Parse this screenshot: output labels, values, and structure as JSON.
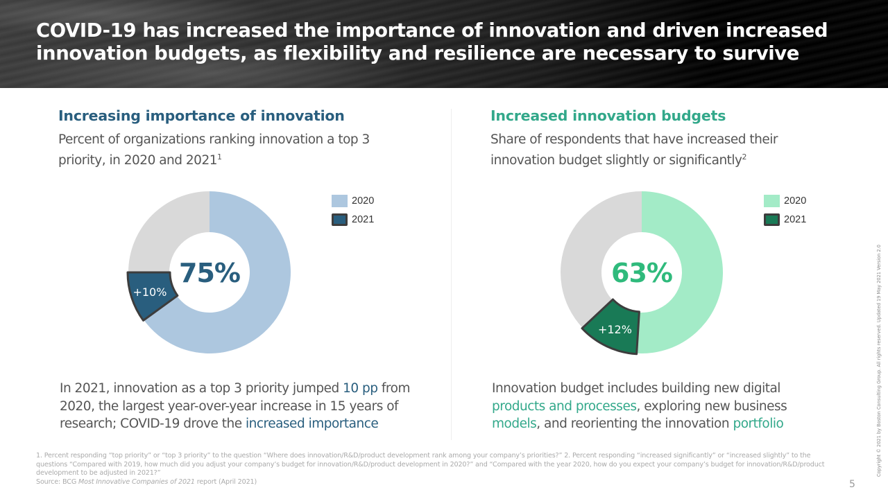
{
  "header": {
    "title": "COVID-19 has increased the importance of innovation and driven increased innovation budgets, as flexibility and resilience are necessary to survive"
  },
  "left_panel": {
    "title": "Increasing importance of innovation",
    "subtitle": "Percent of organizations ranking innovation a top 3 priority, in 2020 and 2021",
    "subtitle_sup": "1",
    "body_parts": [
      {
        "text": "In 2021, innovation as a top 3 priority jumped ",
        "highlight": false
      },
      {
        "text": "10 pp",
        "highlight": true
      },
      {
        "text": " from 2020, the largest year-over-year increase in 15 years of research; COVID-19 drove the ",
        "highlight": false
      },
      {
        "text": "increased importance",
        "highlight": true
      }
    ]
  },
  "right_panel": {
    "title": "Increased innovation budgets",
    "subtitle": "Share of respondents that have increased their innovation budget slightly or significantly",
    "subtitle_sup": "2",
    "body_parts": [
      {
        "text": "Innovation budget includes building new digital ",
        "highlight": false
      },
      {
        "text": "products and processes",
        "highlight": true
      },
      {
        "text": ", exploring new business ",
        "highlight": false
      },
      {
        "text": "models",
        "highlight": true
      },
      {
        "text": ", and reorienting the innovation ",
        "highlight": false
      },
      {
        "text": "portfolio",
        "highlight": true
      }
    ]
  },
  "chart_data": [
    {
      "type": "pie",
      "variant": "donut",
      "title": "Increasing importance of innovation",
      "categories": [
        "2020",
        "2021 increase",
        "Remainder"
      ],
      "values": [
        65,
        10,
        25
      ],
      "series": [
        {
          "name": "2020",
          "value": 65,
          "color": "#adc7df"
        },
        {
          "name": "2021",
          "value": 75,
          "increase_label": "+10%",
          "color": "#295e7e"
        }
      ],
      "center_label": "75%",
      "remainder_color": "#d9d9d9",
      "legend": [
        "2020",
        "2021"
      ],
      "legend_position": "top-right",
      "accent_color": "#295e7e"
    },
    {
      "type": "pie",
      "variant": "donut",
      "title": "Increased innovation budgets",
      "categories": [
        "2020",
        "2021 increase",
        "Remainder"
      ],
      "values": [
        51,
        12,
        37
      ],
      "series": [
        {
          "name": "2020",
          "value": 51,
          "color": "#a3ebc7"
        },
        {
          "name": "2021",
          "value": 63,
          "increase_label": "+12%",
          "color": "#197a56"
        }
      ],
      "center_label": "63%",
      "remainder_color": "#d9d9d9",
      "legend": [
        "2020",
        "2021"
      ],
      "legend_position": "top-right",
      "accent_color": "#2fba7c"
    }
  ],
  "footnotes": {
    "text": "1. Percent responding “top priority” or “top 3 priority” to the question “Where does innovation/R&D/product development rank among your company’s priorities?” 2. Percent responding “increased significantly” or “increased slightly” to the questions “Compared with 2019, how much did you adjust your company’s budget for innovation/R&D/product development in 2020?” and “Compared with the year 2020, how do you expect your company’s budget for innovation/R&D/product development to be adjusted in 2021?”",
    "source_prefix": "Source: BCG ",
    "source_italic": "Most Innovative Companies of 2021",
    "source_suffix": " report (April 2021)"
  },
  "page_number": "5",
  "copyright": "Copyright © 2021 by Boston Consulting Group. All rights reserved. Updated 19 May 2021 Version 2.0",
  "colors": {
    "blue_title": "#295e7e",
    "green_title": "#32a88a",
    "stroke": "#3d3d3d"
  }
}
